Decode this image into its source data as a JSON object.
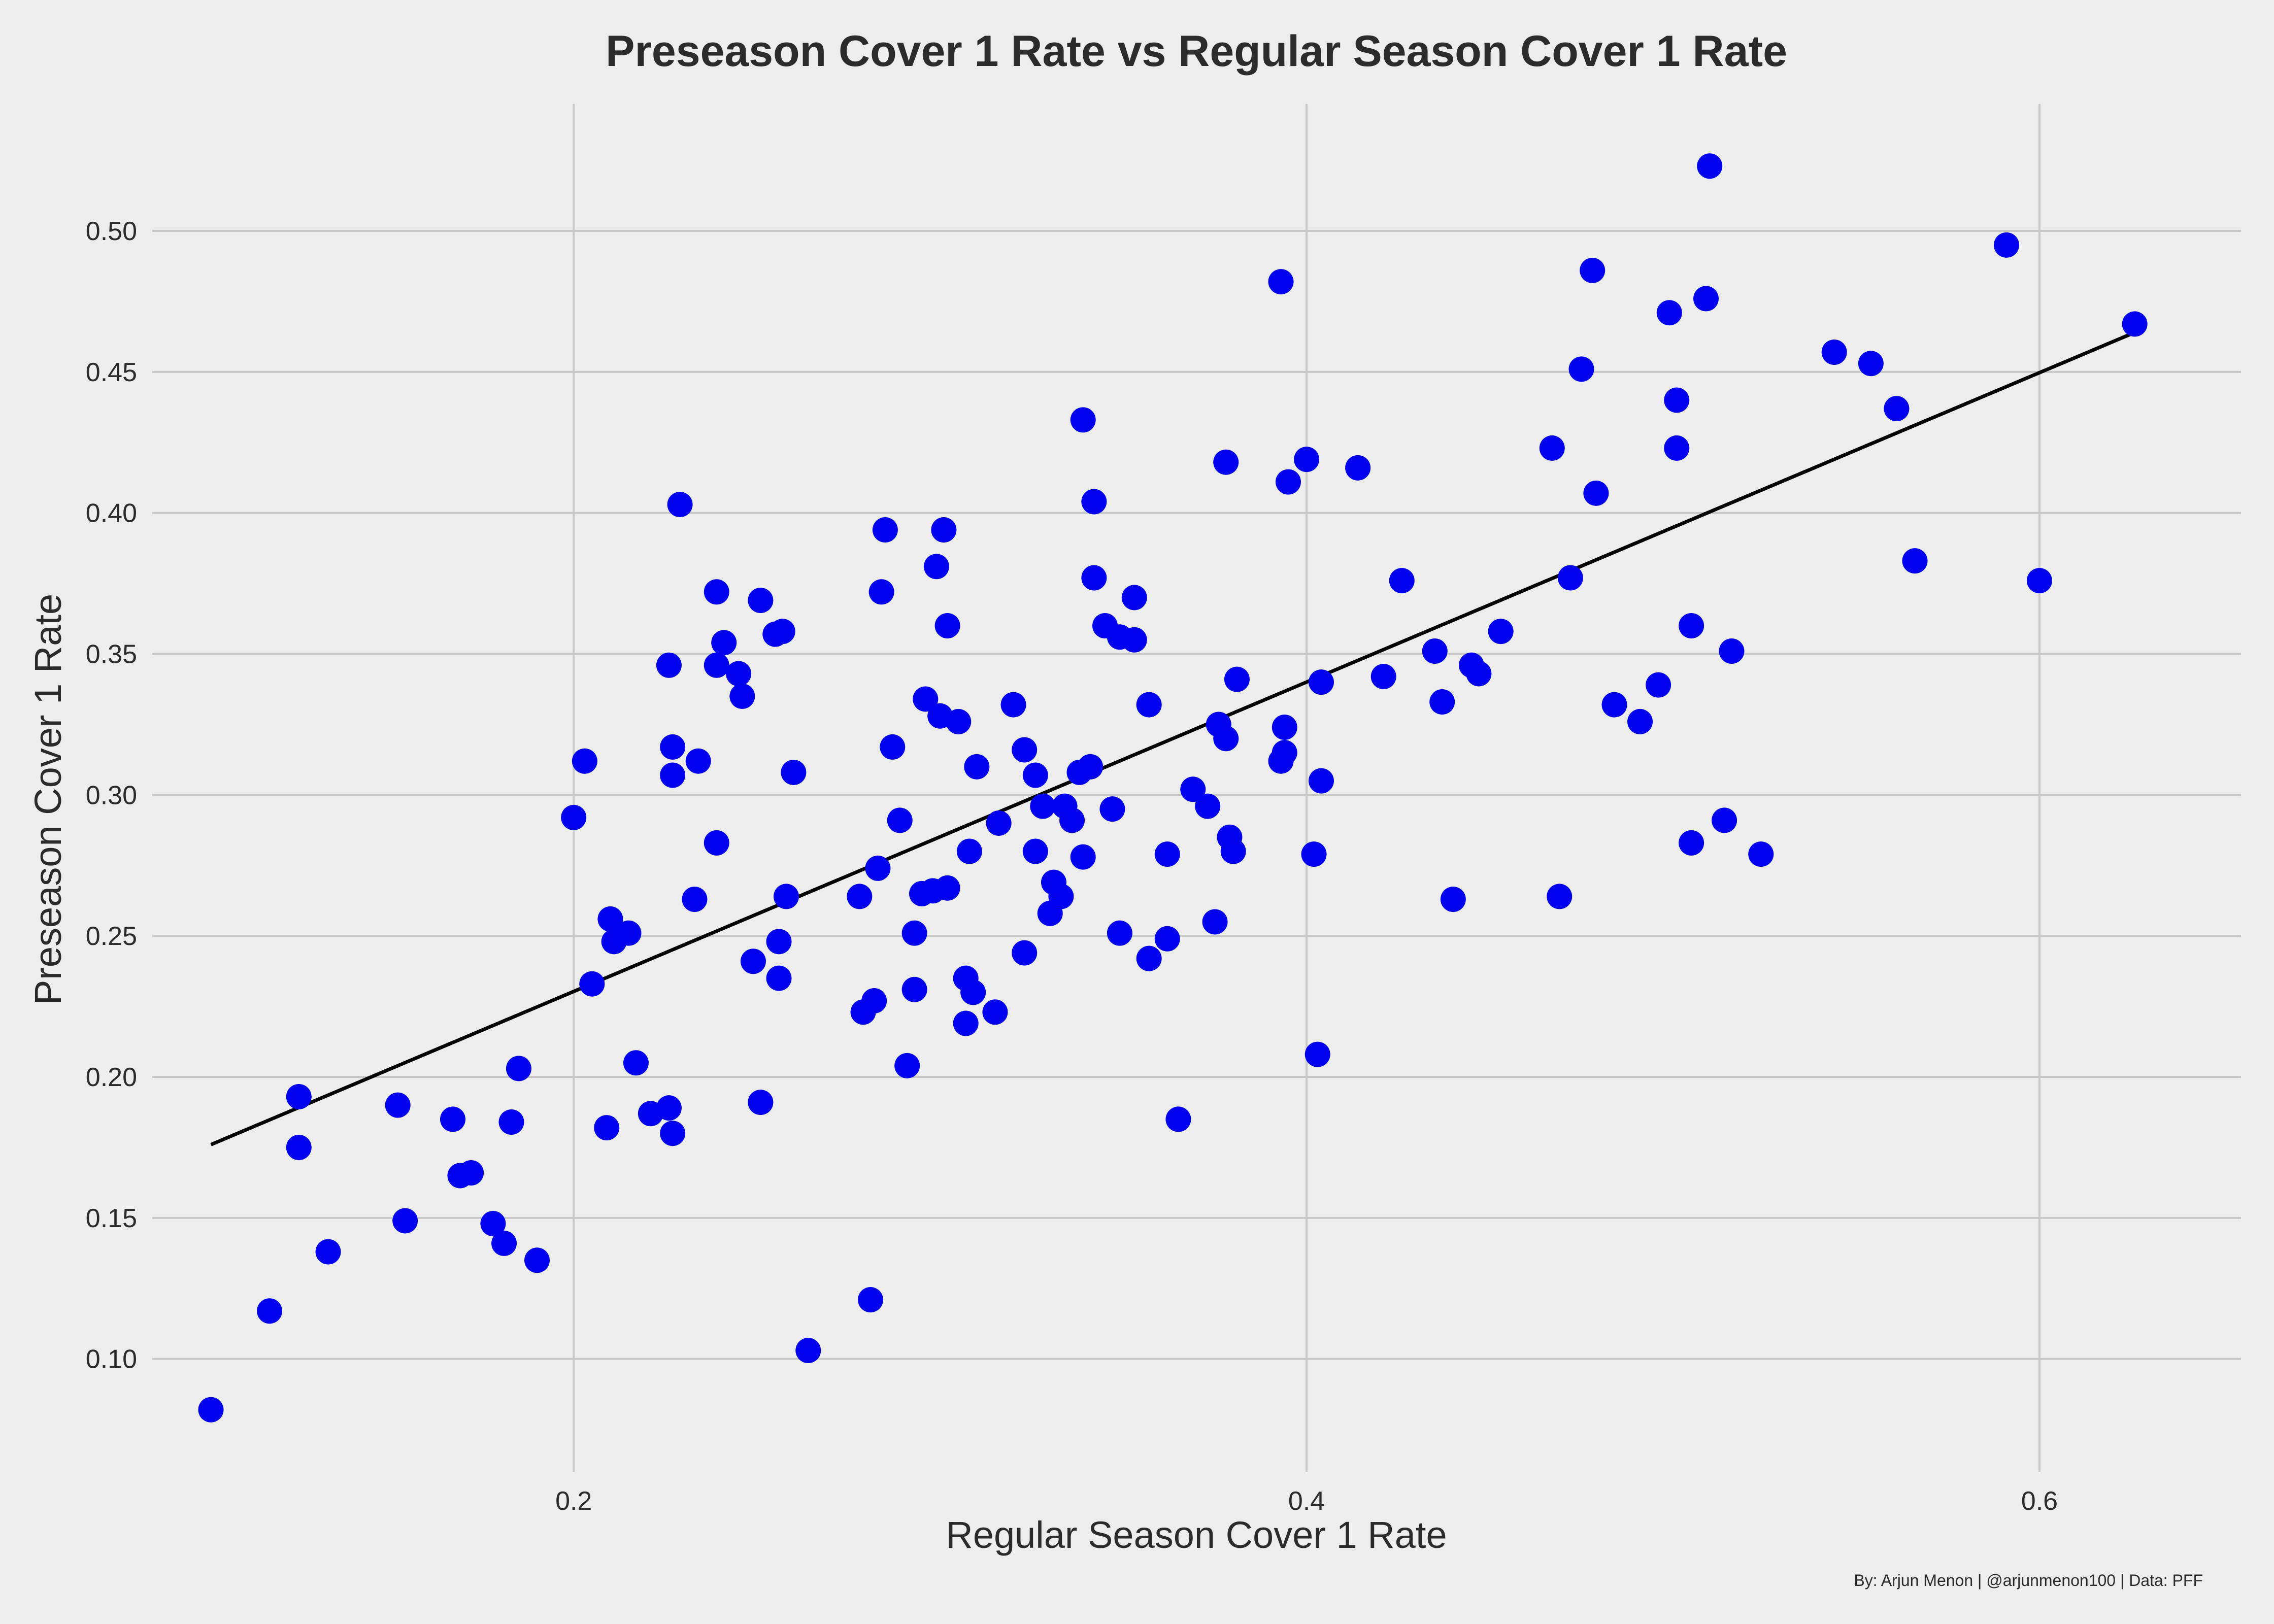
{
  "chart_data": {
    "type": "scatter",
    "title": "Preseason Cover 1 Rate vs Regular Season Cover 1 Rate",
    "xlabel": "Regular Season Cover 1 Rate",
    "ylabel": "Preseason Cover 1 Rate",
    "caption": "By: Arjun Menon | @arjunmenon100 | Data: PFF",
    "xlim": [
      0.085,
      0.655
    ],
    "ylim": [
      0.06,
      0.545
    ],
    "xticks": [
      0.2,
      0.4,
      0.6
    ],
    "xtick_labels": [
      "0.2",
      "0.4",
      "0.6"
    ],
    "yticks": [
      0.1,
      0.15,
      0.2,
      0.25,
      0.3,
      0.35,
      0.4,
      0.45,
      0.5
    ],
    "ytick_labels": [
      "0.10",
      "0.15",
      "0.20",
      "0.25",
      "0.30",
      "0.35",
      "0.40",
      "0.45",
      "0.50"
    ],
    "grid": true,
    "point_color": "#0000ee",
    "line_color": "#000000",
    "background_color": "#ededed",
    "fit_line": {
      "x": [
        0.101,
        0.626
      ],
      "y": [
        0.176,
        0.464
      ]
    },
    "points": [
      {
        "x": 0.101,
        "y": 0.082
      },
      {
        "x": 0.117,
        "y": 0.117
      },
      {
        "x": 0.125,
        "y": 0.193
      },
      {
        "x": 0.125,
        "y": 0.175
      },
      {
        "x": 0.133,
        "y": 0.138
      },
      {
        "x": 0.152,
        "y": 0.19
      },
      {
        "x": 0.154,
        "y": 0.149
      },
      {
        "x": 0.167,
        "y": 0.185
      },
      {
        "x": 0.169,
        "y": 0.165
      },
      {
        "x": 0.172,
        "y": 0.166
      },
      {
        "x": 0.178,
        "y": 0.148
      },
      {
        "x": 0.181,
        "y": 0.141
      },
      {
        "x": 0.183,
        "y": 0.184
      },
      {
        "x": 0.185,
        "y": 0.203
      },
      {
        "x": 0.19,
        "y": 0.135
      },
      {
        "x": 0.2,
        "y": 0.292
      },
      {
        "x": 0.203,
        "y": 0.312
      },
      {
        "x": 0.205,
        "y": 0.233
      },
      {
        "x": 0.209,
        "y": 0.182
      },
      {
        "x": 0.21,
        "y": 0.256
      },
      {
        "x": 0.211,
        "y": 0.248
      },
      {
        "x": 0.215,
        "y": 0.251
      },
      {
        "x": 0.217,
        "y": 0.205
      },
      {
        "x": 0.221,
        "y": 0.187
      },
      {
        "x": 0.226,
        "y": 0.346
      },
      {
        "x": 0.226,
        "y": 0.189
      },
      {
        "x": 0.227,
        "y": 0.317
      },
      {
        "x": 0.227,
        "y": 0.307
      },
      {
        "x": 0.227,
        "y": 0.18
      },
      {
        "x": 0.229,
        "y": 0.403
      },
      {
        "x": 0.233,
        "y": 0.263
      },
      {
        "x": 0.234,
        "y": 0.312
      },
      {
        "x": 0.239,
        "y": 0.372
      },
      {
        "x": 0.239,
        "y": 0.346
      },
      {
        "x": 0.239,
        "y": 0.283
      },
      {
        "x": 0.241,
        "y": 0.354
      },
      {
        "x": 0.245,
        "y": 0.343
      },
      {
        "x": 0.246,
        "y": 0.335
      },
      {
        "x": 0.249,
        "y": 0.241
      },
      {
        "x": 0.251,
        "y": 0.369
      },
      {
        "x": 0.251,
        "y": 0.191
      },
      {
        "x": 0.255,
        "y": 0.357
      },
      {
        "x": 0.256,
        "y": 0.248
      },
      {
        "x": 0.256,
        "y": 0.235
      },
      {
        "x": 0.257,
        "y": 0.358
      },
      {
        "x": 0.258,
        "y": 0.264
      },
      {
        "x": 0.26,
        "y": 0.308
      },
      {
        "x": 0.264,
        "y": 0.103
      },
      {
        "x": 0.278,
        "y": 0.264
      },
      {
        "x": 0.279,
        "y": 0.223
      },
      {
        "x": 0.281,
        "y": 0.121
      },
      {
        "x": 0.282,
        "y": 0.227
      },
      {
        "x": 0.283,
        "y": 0.274
      },
      {
        "x": 0.284,
        "y": 0.372
      },
      {
        "x": 0.285,
        "y": 0.394
      },
      {
        "x": 0.287,
        "y": 0.317
      },
      {
        "x": 0.289,
        "y": 0.291
      },
      {
        "x": 0.291,
        "y": 0.204
      },
      {
        "x": 0.293,
        "y": 0.251
      },
      {
        "x": 0.293,
        "y": 0.231
      },
      {
        "x": 0.295,
        "y": 0.265
      },
      {
        "x": 0.296,
        "y": 0.334
      },
      {
        "x": 0.298,
        "y": 0.266
      },
      {
        "x": 0.299,
        "y": 0.381
      },
      {
        "x": 0.3,
        "y": 0.328
      },
      {
        "x": 0.301,
        "y": 0.394
      },
      {
        "x": 0.302,
        "y": 0.267
      },
      {
        "x": 0.302,
        "y": 0.36
      },
      {
        "x": 0.305,
        "y": 0.326
      },
      {
        "x": 0.307,
        "y": 0.235
      },
      {
        "x": 0.307,
        "y": 0.219
      },
      {
        "x": 0.308,
        "y": 0.28
      },
      {
        "x": 0.309,
        "y": 0.23
      },
      {
        "x": 0.31,
        "y": 0.31
      },
      {
        "x": 0.315,
        "y": 0.223
      },
      {
        "x": 0.316,
        "y": 0.29
      },
      {
        "x": 0.32,
        "y": 0.332
      },
      {
        "x": 0.323,
        "y": 0.316
      },
      {
        "x": 0.323,
        "y": 0.244
      },
      {
        "x": 0.326,
        "y": 0.307
      },
      {
        "x": 0.326,
        "y": 0.28
      },
      {
        "x": 0.328,
        "y": 0.296
      },
      {
        "x": 0.33,
        "y": 0.258
      },
      {
        "x": 0.331,
        "y": 0.269
      },
      {
        "x": 0.333,
        "y": 0.264
      },
      {
        "x": 0.334,
        "y": 0.296
      },
      {
        "x": 0.336,
        "y": 0.291
      },
      {
        "x": 0.338,
        "y": 0.308
      },
      {
        "x": 0.339,
        "y": 0.433
      },
      {
        "x": 0.339,
        "y": 0.278
      },
      {
        "x": 0.341,
        "y": 0.31
      },
      {
        "x": 0.342,
        "y": 0.404
      },
      {
        "x": 0.342,
        "y": 0.377
      },
      {
        "x": 0.345,
        "y": 0.36
      },
      {
        "x": 0.347,
        "y": 0.295
      },
      {
        "x": 0.349,
        "y": 0.356
      },
      {
        "x": 0.349,
        "y": 0.251
      },
      {
        "x": 0.353,
        "y": 0.37
      },
      {
        "x": 0.353,
        "y": 0.355
      },
      {
        "x": 0.357,
        "y": 0.332
      },
      {
        "x": 0.357,
        "y": 0.242
      },
      {
        "x": 0.362,
        "y": 0.249
      },
      {
        "x": 0.362,
        "y": 0.279
      },
      {
        "x": 0.365,
        "y": 0.185
      },
      {
        "x": 0.369,
        "y": 0.302
      },
      {
        "x": 0.373,
        "y": 0.296
      },
      {
        "x": 0.375,
        "y": 0.255
      },
      {
        "x": 0.376,
        "y": 0.325
      },
      {
        "x": 0.378,
        "y": 0.32
      },
      {
        "x": 0.378,
        "y": 0.418
      },
      {
        "x": 0.379,
        "y": 0.285
      },
      {
        "x": 0.38,
        "y": 0.28
      },
      {
        "x": 0.381,
        "y": 0.341
      },
      {
        "x": 0.393,
        "y": 0.482
      },
      {
        "x": 0.393,
        "y": 0.312
      },
      {
        "x": 0.394,
        "y": 0.315
      },
      {
        "x": 0.394,
        "y": 0.324
      },
      {
        "x": 0.395,
        "y": 0.411
      },
      {
        "x": 0.4,
        "y": 0.419
      },
      {
        "x": 0.402,
        "y": 0.279
      },
      {
        "x": 0.403,
        "y": 0.208
      },
      {
        "x": 0.404,
        "y": 0.305
      },
      {
        "x": 0.404,
        "y": 0.34
      },
      {
        "x": 0.414,
        "y": 0.416
      },
      {
        "x": 0.421,
        "y": 0.342
      },
      {
        "x": 0.426,
        "y": 0.376
      },
      {
        "x": 0.435,
        "y": 0.351
      },
      {
        "x": 0.437,
        "y": 0.333
      },
      {
        "x": 0.44,
        "y": 0.263
      },
      {
        "x": 0.445,
        "y": 0.346
      },
      {
        "x": 0.447,
        "y": 0.343
      },
      {
        "x": 0.453,
        "y": 0.358
      },
      {
        "x": 0.467,
        "y": 0.423
      },
      {
        "x": 0.469,
        "y": 0.264
      },
      {
        "x": 0.472,
        "y": 0.377
      },
      {
        "x": 0.475,
        "y": 0.451
      },
      {
        "x": 0.478,
        "y": 0.486
      },
      {
        "x": 0.479,
        "y": 0.407
      },
      {
        "x": 0.484,
        "y": 0.332
      },
      {
        "x": 0.491,
        "y": 0.326
      },
      {
        "x": 0.496,
        "y": 0.339
      },
      {
        "x": 0.499,
        "y": 0.471
      },
      {
        "x": 0.501,
        "y": 0.44
      },
      {
        "x": 0.501,
        "y": 0.423
      },
      {
        "x": 0.505,
        "y": 0.36
      },
      {
        "x": 0.505,
        "y": 0.283
      },
      {
        "x": 0.509,
        "y": 0.476
      },
      {
        "x": 0.51,
        "y": 0.523
      },
      {
        "x": 0.514,
        "y": 0.291
      },
      {
        "x": 0.516,
        "y": 0.351
      },
      {
        "x": 0.524,
        "y": 0.279
      },
      {
        "x": 0.544,
        "y": 0.457
      },
      {
        "x": 0.554,
        "y": 0.453
      },
      {
        "x": 0.561,
        "y": 0.437
      },
      {
        "x": 0.566,
        "y": 0.383
      },
      {
        "x": 0.591,
        "y": 0.495
      },
      {
        "x": 0.6,
        "y": 0.376
      },
      {
        "x": 0.626,
        "y": 0.467
      }
    ]
  }
}
